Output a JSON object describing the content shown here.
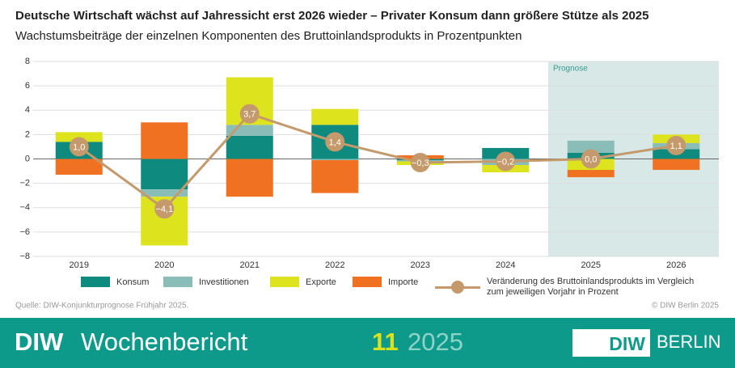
{
  "chart_data": {
    "type": "bar",
    "title": "Deutsche Wirtschaft wächst auf Jahressicht erst 2026 wieder – Privater Konsum dann größere Stütze als 2025",
    "subtitle": "Wachstumsbeiträge der einzelnen Komponenten des Bruttoinlandsprodukts in Prozentpunkten",
    "categories": [
      "2019",
      "2020",
      "2021",
      "2022",
      "2023",
      "2024",
      "2025",
      "2026"
    ],
    "series": [
      {
        "name": "Konsum",
        "type": "bar",
        "color": "#0f8a7e",
        "values": [
          1.4,
          -2.5,
          1.9,
          2.8,
          -0.1,
          0.9,
          0.5,
          0.8
        ]
      },
      {
        "name": "Investitionen",
        "type": "bar",
        "color": "#8bbdb8",
        "values": [
          0,
          -0.6,
          0.9,
          -0.1,
          -0.1,
          -0.5,
          1.0,
          0.5
        ]
      },
      {
        "name": "Exporte",
        "type": "bar",
        "color": "#dde31d",
        "values": [
          0.8,
          -4.0,
          3.9,
          1.3,
          -0.3,
          -0.6,
          -0.9,
          0.7
        ]
      },
      {
        "name": "Importe",
        "type": "bar",
        "color": "#f07122",
        "values": [
          -1.3,
          3.0,
          -3.1,
          -2.7,
          0.3,
          0,
          -0.6,
          -0.9
        ]
      },
      {
        "name": "Veränderung des Bruttoinlandsprodukts im Vergleich zum jeweiligen Vorjahr in Prozent",
        "type": "line",
        "color": "#c49a6c",
        "values": [
          1.0,
          -4.1,
          3.7,
          1.4,
          -0.3,
          -0.2,
          0.0,
          1.1
        ],
        "value_labels": [
          "1,0",
          "−4,1",
          "3,7",
          "1,4",
          "−0,3",
          "−0,2",
          "0,0",
          "1,1"
        ]
      }
    ],
    "ylim": [
      -8,
      8
    ],
    "yticks": [
      {
        "value": -8,
        "label": "−8"
      },
      {
        "value": -6,
        "label": "−6"
      },
      {
        "value": -4,
        "label": "−4"
      },
      {
        "value": -2,
        "label": "−2"
      },
      0,
      2,
      4,
      6,
      8
    ],
    "grid": true,
    "forecast": {
      "label": "Prognose",
      "start_index": 6,
      "color": "#d7e8e6"
    },
    "source": "Quelle: DIW-Konjunkturprognose Frühjahr 2025.",
    "copyright": "© DIW Berlin 2025"
  },
  "footer": {
    "brand": "DIW",
    "publication": "Wochenbericht",
    "issue": "11",
    "year": "2025",
    "logo_left": "DIW",
    "logo_right": "BERLIN"
  }
}
